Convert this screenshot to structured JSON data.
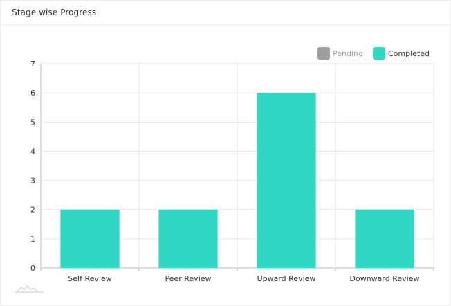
{
  "card": {
    "title": "Stage wise Progress"
  },
  "legend": {
    "items": [
      {
        "label": "Pending",
        "color": "#9e9e9e",
        "text_color": "#a0a0a0"
      },
      {
        "label": "Completed",
        "color": "#2ed8c3",
        "text_color": "#333333"
      }
    ],
    "placement": "top-right"
  },
  "colors": {
    "completed": "#2ed8c3",
    "pending": "#9e9e9e",
    "grid": "#e6e6e6",
    "axis": "#bbbbbb"
  },
  "footer": {
    "icon": "sparkline-icon"
  },
  "chart_data": {
    "type": "bar",
    "title": "",
    "xlabel": "",
    "ylabel": "",
    "categories": [
      "Self Review",
      "Peer Review",
      "Upward Review",
      "Downward Review"
    ],
    "series": [
      {
        "name": "Pending",
        "values": [
          0,
          0,
          0,
          0
        ]
      },
      {
        "name": "Completed",
        "values": [
          2,
          2,
          6,
          2
        ]
      }
    ],
    "ylim": [
      0,
      7
    ],
    "yticks": [
      0,
      1,
      2,
      3,
      4,
      5,
      6,
      7
    ],
    "grid": true,
    "stacked": true
  }
}
